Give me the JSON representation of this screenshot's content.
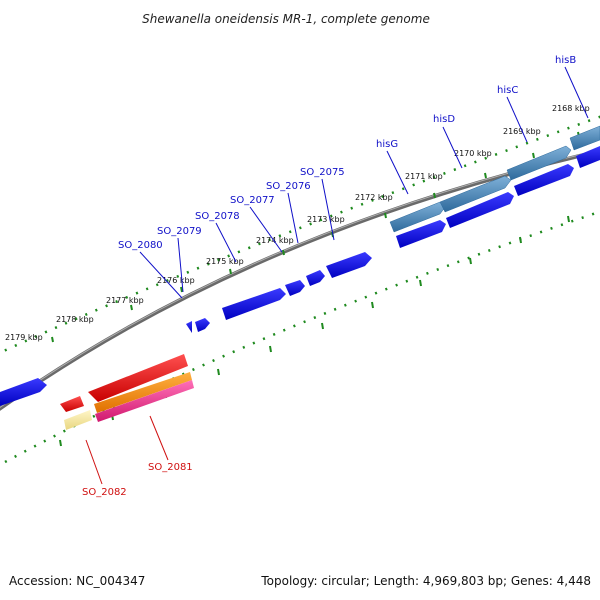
{
  "title": "Shewanella oneidensis MR-1, complete genome",
  "footer": {
    "accession": "Accession: NC_004347",
    "summary": "Topology: circular; Length: 4,969,803 bp; Genes: 4,448"
  },
  "colors": {
    "backbone": "#7a7a7a",
    "tick": "#1f8a1f",
    "cds": "#0a0ae0",
    "operon_his": "#4a86b8",
    "red_gene": "#e8141a",
    "orange_gene": "#f28a1a",
    "pink_gene": "#e8308a",
    "pale_gene": "#f2e49a",
    "label_blue": "#1010c8",
    "label_red": "#d01010"
  },
  "kbp_labels": [
    "2168 kbp",
    "2169 kbp",
    "2170 kbp",
    "2171 kbp",
    "2172 kbp",
    "2173 kbp",
    "2174 kbp",
    "2175 kbp",
    "2176 kbp",
    "2177 kbp",
    "2178 kbp",
    "2179 kbp"
  ],
  "gene_labels": [
    {
      "name": "hisB",
      "color": "blue"
    },
    {
      "name": "hisC",
      "color": "blue"
    },
    {
      "name": "hisD",
      "color": "blue"
    },
    {
      "name": "hisG",
      "color": "blue"
    },
    {
      "name": "SO_2075",
      "color": "blue"
    },
    {
      "name": "SO_2076",
      "color": "blue"
    },
    {
      "name": "SO_2077",
      "color": "blue"
    },
    {
      "name": "SO_2078",
      "color": "blue"
    },
    {
      "name": "SO_2079",
      "color": "blue"
    },
    {
      "name": "SO_2080",
      "color": "blue"
    },
    {
      "name": "SO_2081",
      "color": "red"
    },
    {
      "name": "SO_2082",
      "color": "red"
    }
  ]
}
